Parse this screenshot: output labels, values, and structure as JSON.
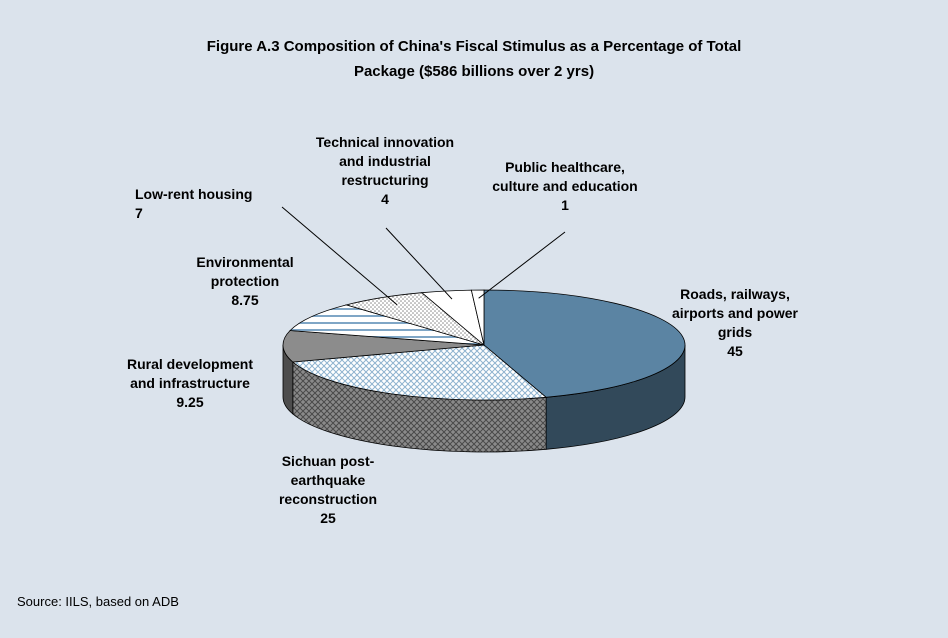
{
  "chart_data": {
    "type": "pie3d",
    "title": "Figure A.3 Composition of China's Fiscal Stimulus as a Percentage of Total\nPackage ($586 billions over 2 yrs)",
    "categories": [
      "Roads, railways,\nairports and power\ngrids",
      "Sichuan post-\nearthquake\nreconstruction",
      "Rural development\nand infrastructure",
      "Environmental\nprotection",
      "Low-rent housing",
      "Technical innovation\nand industrial\nrestructuring",
      "Public healthcare,\nculture and education"
    ],
    "values": [
      45,
      25,
      9.25,
      8.75,
      7,
      4,
      1
    ],
    "colors": [
      "#5b84a3",
      "#ffffff",
      "#8c8c8c",
      "#ffffff",
      "#ffffff",
      "#ffffff",
      "#ffffff"
    ],
    "patterns": [
      "none",
      "crosshatch",
      "none",
      "horizontal",
      "dots",
      "none",
      "none"
    ],
    "source": "Source: IILS, based on ADB"
  }
}
